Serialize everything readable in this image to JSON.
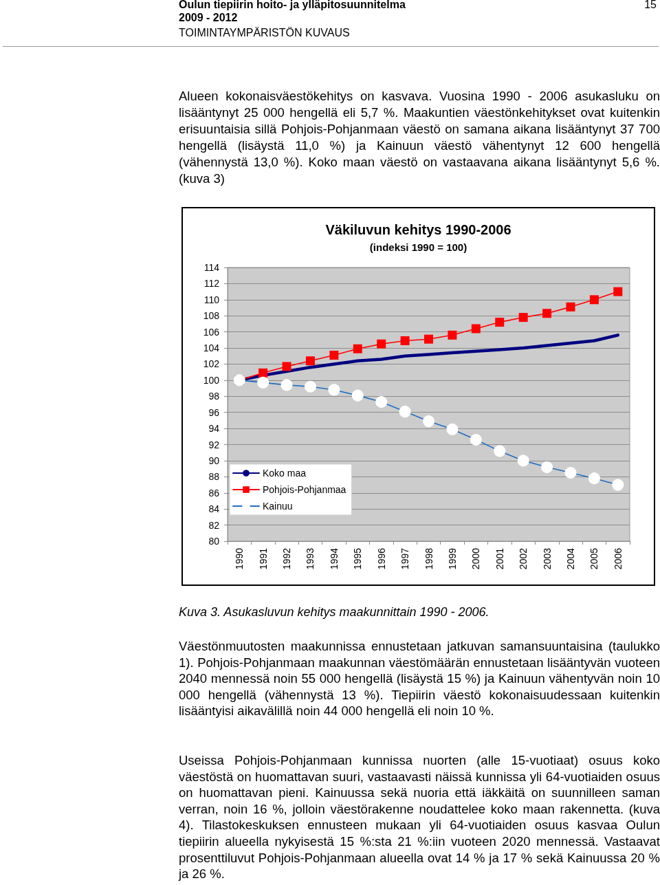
{
  "chart_data": {
    "type": "line",
    "title": "Väkiluvun kehitys 1990-2006",
    "subtitle": "(indeksi 1990 = 100)",
    "annotations": [
      "Oulun tiepiirin hoito- ja ylläpitosuunnitelma",
      "2009 - 2012",
      "TOIMINTAYMPÄRISTÖN KUVAUS",
      "15",
      "Alueen kokonaisväestökehitys on kasvava. Vuosina 1990 - 2006 asukasluku on lisääntynyt 25 000 hengellä eli 5,7 %. Maakuntien väestönkehitykset ovat kuitenkin erisuuntaisia sillä Pohjois-Pohjanmaan väestö on samana aikana lisääntynyt 37 700 hengellä (lisäystä 11,0 %) ja Kainuun väestö vähentynyt 12 600 hengellä (vähennystä 13,0 %). Koko maan väestö on vastaavana aikana lisääntynyt 5,6 %. (kuva 3)",
      "Kuva 3. Asukasluvun kehitys maakunnittain 1990 - 2006.",
      "Väestönmuutosten maakunnissa ennustetaan jatkuvan samansuuntaisina (taulukko 1). Pohjois-Pohjanmaan maakunnan väestömäärän ennustetaan lisääntyvän vuoteen 2040 mennessä noin 55 000 hengellä (lisäystä 15 %) ja Kainuun vähentyvän noin 10 000 hengellä (vähennystä 13 %). Tiepiirin väestö kokonaisuudessaan kuitenkin lisääntyisi aikavälillä noin 44 000 hengellä eli noin 10 %.",
      "Useissa Pohjois-Pohjanmaan kunnissa nuorten (alle 15-vuotiaat) osuus koko väestöstä on huomattavan suuri, vastaavasti näissä kunnissa yli 64-vuotiaiden osuus on huomattavan pieni. Kainuussa sekä nuoria että iäkkäitä on suunnilleen saman verran, noin 16 %, jolloin väestörakenne noudattelee koko maan rakennetta. (kuva 4). Tilastokeskuksen ennusteen mukaan yli 64-vuotiaiden osuus kasvaa Oulun tiepiirin alueella nykyisestä 15 %:sta 21 %:iin vuoteen 2020 mennessä. Vastaavat prosenttiluvut Pohjois-Pohjanmaan alueella ovat 14 % ja 17 % sekä Kainuussa 20 % ja 26 %."
    ],
    "categories": [
      "1990",
      "1991",
      "1992",
      "1993",
      "1994",
      "1995",
      "1996",
      "1997",
      "1998",
      "1999",
      "2000",
      "2001",
      "2002",
      "2003",
      "2004",
      "2005",
      "2006"
    ],
    "series": [
      {
        "name": "Koko maa",
        "color": "#000080",
        "marker": "none",
        "values": [
          100,
          100.6,
          101.1,
          101.6,
          102.0,
          102.4,
          102.6,
          103.0,
          103.2,
          103.4,
          103.6,
          103.8,
          104.0,
          104.3,
          104.6,
          104.9,
          105.6
        ]
      },
      {
        "name": "Pohjois-Pohjanmaa",
        "color": "#ff0000",
        "marker": "square",
        "values": [
          100,
          100.9,
          101.7,
          102.4,
          103.1,
          103.9,
          104.5,
          104.9,
          105.1,
          105.6,
          106.4,
          107.2,
          107.8,
          108.3,
          109.1,
          110.0,
          111.0
        ]
      },
      {
        "name": "Kainuu",
        "color": "#1f6fc5",
        "marker": "circle",
        "values": [
          100,
          99.7,
          99.4,
          99.2,
          98.8,
          98.1,
          97.3,
          96.1,
          94.9,
          93.9,
          92.6,
          91.2,
          90.0,
          89.2,
          88.5,
          87.8,
          87.0
        ]
      }
    ],
    "ylim": [
      80,
      114
    ],
    "yticks": [
      80,
      82,
      84,
      86,
      88,
      90,
      92,
      94,
      96,
      98,
      100,
      102,
      104,
      106,
      108,
      110,
      112,
      114
    ],
    "grid": "y",
    "legend": "bottom left"
  }
}
